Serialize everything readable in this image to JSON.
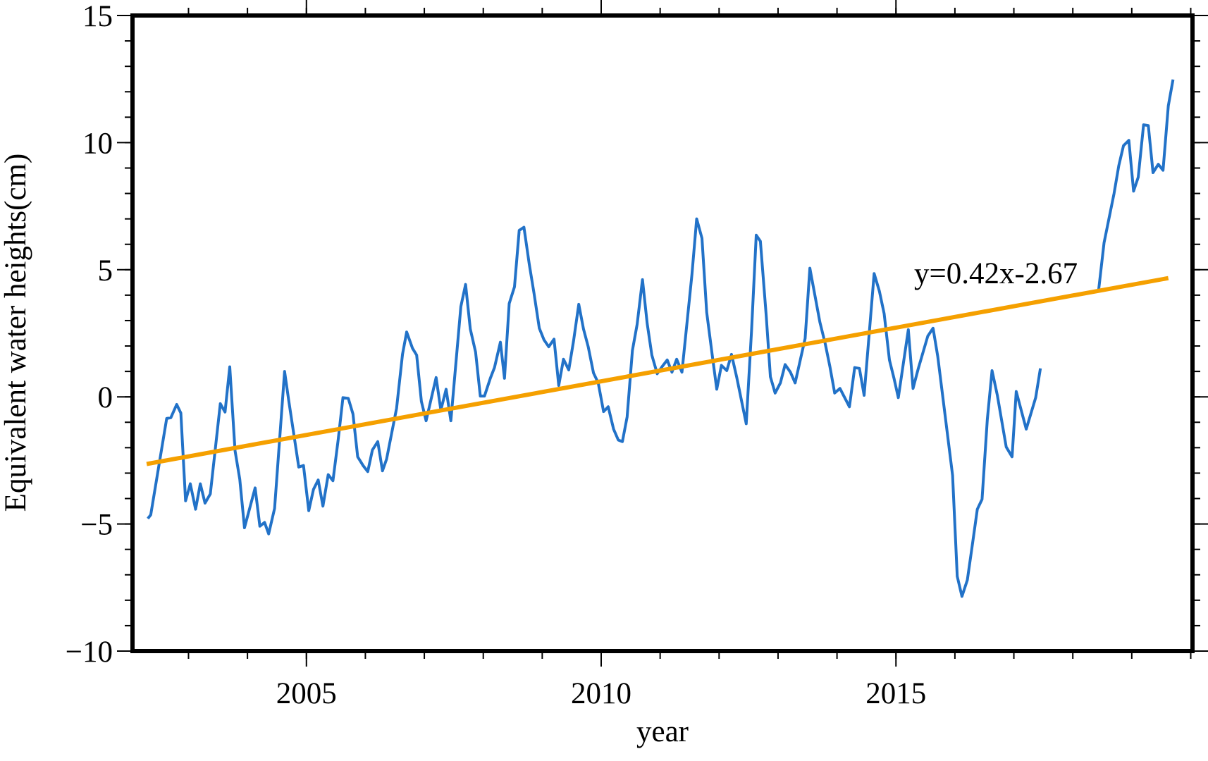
{
  "chart_data": {
    "type": "line",
    "xlabel": "year",
    "ylabel": "Equivalent water heights(cm)",
    "annotation": "y=0.42x-2.67",
    "xlim": [
      2002.05,
      2020.03
    ],
    "ylim": [
      -10,
      15
    ],
    "xticks": [
      2005,
      2010,
      2015
    ],
    "yticks": [
      {
        "value": -10,
        "label": "−10"
      },
      {
        "value": -5,
        "label": "−5"
      },
      0,
      5,
      10,
      15
    ],
    "xminor": [
      2002,
      2003,
      2004,
      2005,
      2006,
      2007,
      2008,
      2009,
      2010,
      2011,
      2012,
      2013,
      2014,
      2015,
      2016,
      2017,
      2018,
      2019,
      2020
    ],
    "yminor": [
      -10,
      -9,
      -8,
      -7,
      -6,
      -5,
      -4,
      -3,
      -2,
      -1,
      0,
      1,
      2,
      3,
      4,
      5,
      6,
      7,
      8,
      9,
      10,
      11,
      12,
      13,
      14,
      15
    ],
    "series": [
      {
        "color": "#2272c8",
        "x": [
          2002.31,
          2002.36,
          2002.63,
          2002.7,
          2002.8,
          2002.87,
          2002.95,
          2003.03,
          2003.12,
          2003.2,
          2003.28,
          2003.37,
          2003.54,
          2003.62,
          2003.7,
          2003.79,
          2003.87,
          2003.95,
          2004.13,
          2004.21,
          2004.29,
          2004.36,
          2004.46,
          2004.63,
          2004.7,
          2004.87,
          2004.95,
          2005.04,
          2005.12,
          2005.2,
          2005.28,
          2005.37,
          2005.45,
          2005.54,
          2005.62,
          2005.71,
          2005.79,
          2005.87,
          2005.96,
          2006.04,
          2006.12,
          2006.21,
          2006.29,
          2006.36,
          2006.53,
          2006.63,
          2006.7,
          2006.8,
          2006.87,
          2006.95,
          2007.03,
          2007.2,
          2007.28,
          2007.37,
          2007.45,
          2007.62,
          2007.7,
          2007.78,
          2007.87,
          2007.95,
          2008.02,
          2008.12,
          2008.19,
          2008.29,
          2008.36,
          2008.44,
          2008.53,
          2008.61,
          2008.69,
          2008.78,
          2008.86,
          2008.95,
          2009.03,
          2009.11,
          2009.2,
          2009.28,
          2009.36,
          2009.45,
          2009.53,
          2009.62,
          2009.7,
          2009.78,
          2009.87,
          2009.95,
          2010.04,
          2010.12,
          2010.21,
          2010.29,
          2010.36,
          2010.44,
          2010.53,
          2010.61,
          2010.7,
          2010.78,
          2010.86,
          2010.95,
          2011.03,
          2011.12,
          2011.2,
          2011.28,
          2011.37,
          2011.54,
          2011.62,
          2011.71,
          2011.79,
          2011.88,
          2011.96,
          2012.04,
          2012.13,
          2012.21,
          2012.3,
          2012.46,
          2012.55,
          2012.63,
          2012.7,
          2012.8,
          2012.87,
          2012.95,
          2013.04,
          2013.12,
          2013.21,
          2013.29,
          2013.46,
          2013.54,
          2013.63,
          2013.71,
          2013.8,
          2013.88,
          2013.96,
          2014.05,
          2014.21,
          2014.3,
          2014.38,
          2014.46,
          2014.63,
          2014.72,
          2014.8,
          2014.89,
          2014.97,
          2015.04,
          2015.21,
          2015.29,
          2015.38,
          2015.54,
          2015.63,
          2015.71,
          2015.96,
          2016.04,
          2016.12,
          2016.21,
          2016.29,
          2016.38,
          2016.46,
          2016.55,
          2016.63,
          2016.72,
          2016.87,
          2016.97,
          2017.04,
          2017.21,
          2017.37,
          2017.45,
          2017.8,
          2018.44,
          2018.53,
          2018.7,
          2018.78,
          2018.86,
          2018.95,
          2019.03,
          2019.11,
          2019.2,
          2019.28,
          2019.36,
          2019.45,
          2019.53,
          2019.62,
          2019.7
        ],
        "values": [
          -4.79,
          -4.64,
          -0.85,
          -0.82,
          -0.3,
          -0.64,
          -4.09,
          -3.42,
          -4.42,
          -3.42,
          -4.18,
          -3.82,
          -0.27,
          -0.6,
          1.18,
          -2.12,
          -3.24,
          -5.15,
          -3.58,
          -5.09,
          -4.94,
          -5.39,
          -4.39,
          1.0,
          -0.15,
          -2.76,
          -2.7,
          -4.48,
          -3.64,
          -3.27,
          -4.3,
          -3.06,
          -3.3,
          -1.67,
          -0.03,
          -0.06,
          -0.67,
          -2.36,
          -2.7,
          -2.94,
          -2.09,
          -1.76,
          -2.91,
          -2.45,
          -0.45,
          1.67,
          2.55,
          1.91,
          1.64,
          -0.18,
          -0.94,
          0.76,
          -0.52,
          0.3,
          -0.94,
          3.55,
          4.42,
          2.67,
          1.76,
          0.03,
          0.03,
          0.73,
          1.15,
          2.15,
          0.73,
          3.67,
          4.33,
          6.55,
          6.67,
          5.21,
          4.09,
          2.7,
          2.24,
          1.97,
          2.27,
          0.45,
          1.48,
          1.06,
          2.18,
          3.64,
          2.67,
          1.97,
          0.94,
          0.55,
          -0.58,
          -0.39,
          -1.27,
          -1.7,
          -1.76,
          -0.79,
          1.82,
          2.85,
          4.61,
          2.88,
          1.64,
          0.91,
          1.18,
          1.45,
          0.97,
          1.48,
          0.97,
          4.82,
          7.0,
          6.24,
          3.33,
          1.7,
          0.3,
          1.24,
          1.03,
          1.67,
          0.76,
          -1.06,
          2.58,
          6.36,
          6.12,
          3.18,
          0.79,
          0.15,
          0.55,
          1.27,
          0.97,
          0.55,
          2.3,
          5.06,
          3.94,
          2.94,
          2.09,
          1.18,
          0.15,
          0.33,
          -0.39,
          1.15,
          1.12,
          0.06,
          4.85,
          4.15,
          3.27,
          1.45,
          0.7,
          -0.03,
          2.64,
          0.33,
          1.12,
          2.39,
          2.7,
          1.58,
          -3.09,
          -7.06,
          -7.85,
          -7.21,
          -5.91,
          -4.42,
          -4.03,
          -0.88,
          1.03,
          0.06,
          -1.97,
          -2.36,
          0.21,
          -1.27,
          -0.03,
          1.12,
          null,
          4.24,
          6.06,
          8.0,
          9.09,
          9.88,
          10.09,
          8.09,
          8.64,
          10.7,
          10.67,
          8.82,
          9.15,
          8.91,
          11.45,
          12.48
        ]
      },
      {
        "color": "#f5a000",
        "x": [
          2002.29,
          2019.62
        ],
        "values": [
          -2.64,
          4.67
        ]
      }
    ]
  }
}
